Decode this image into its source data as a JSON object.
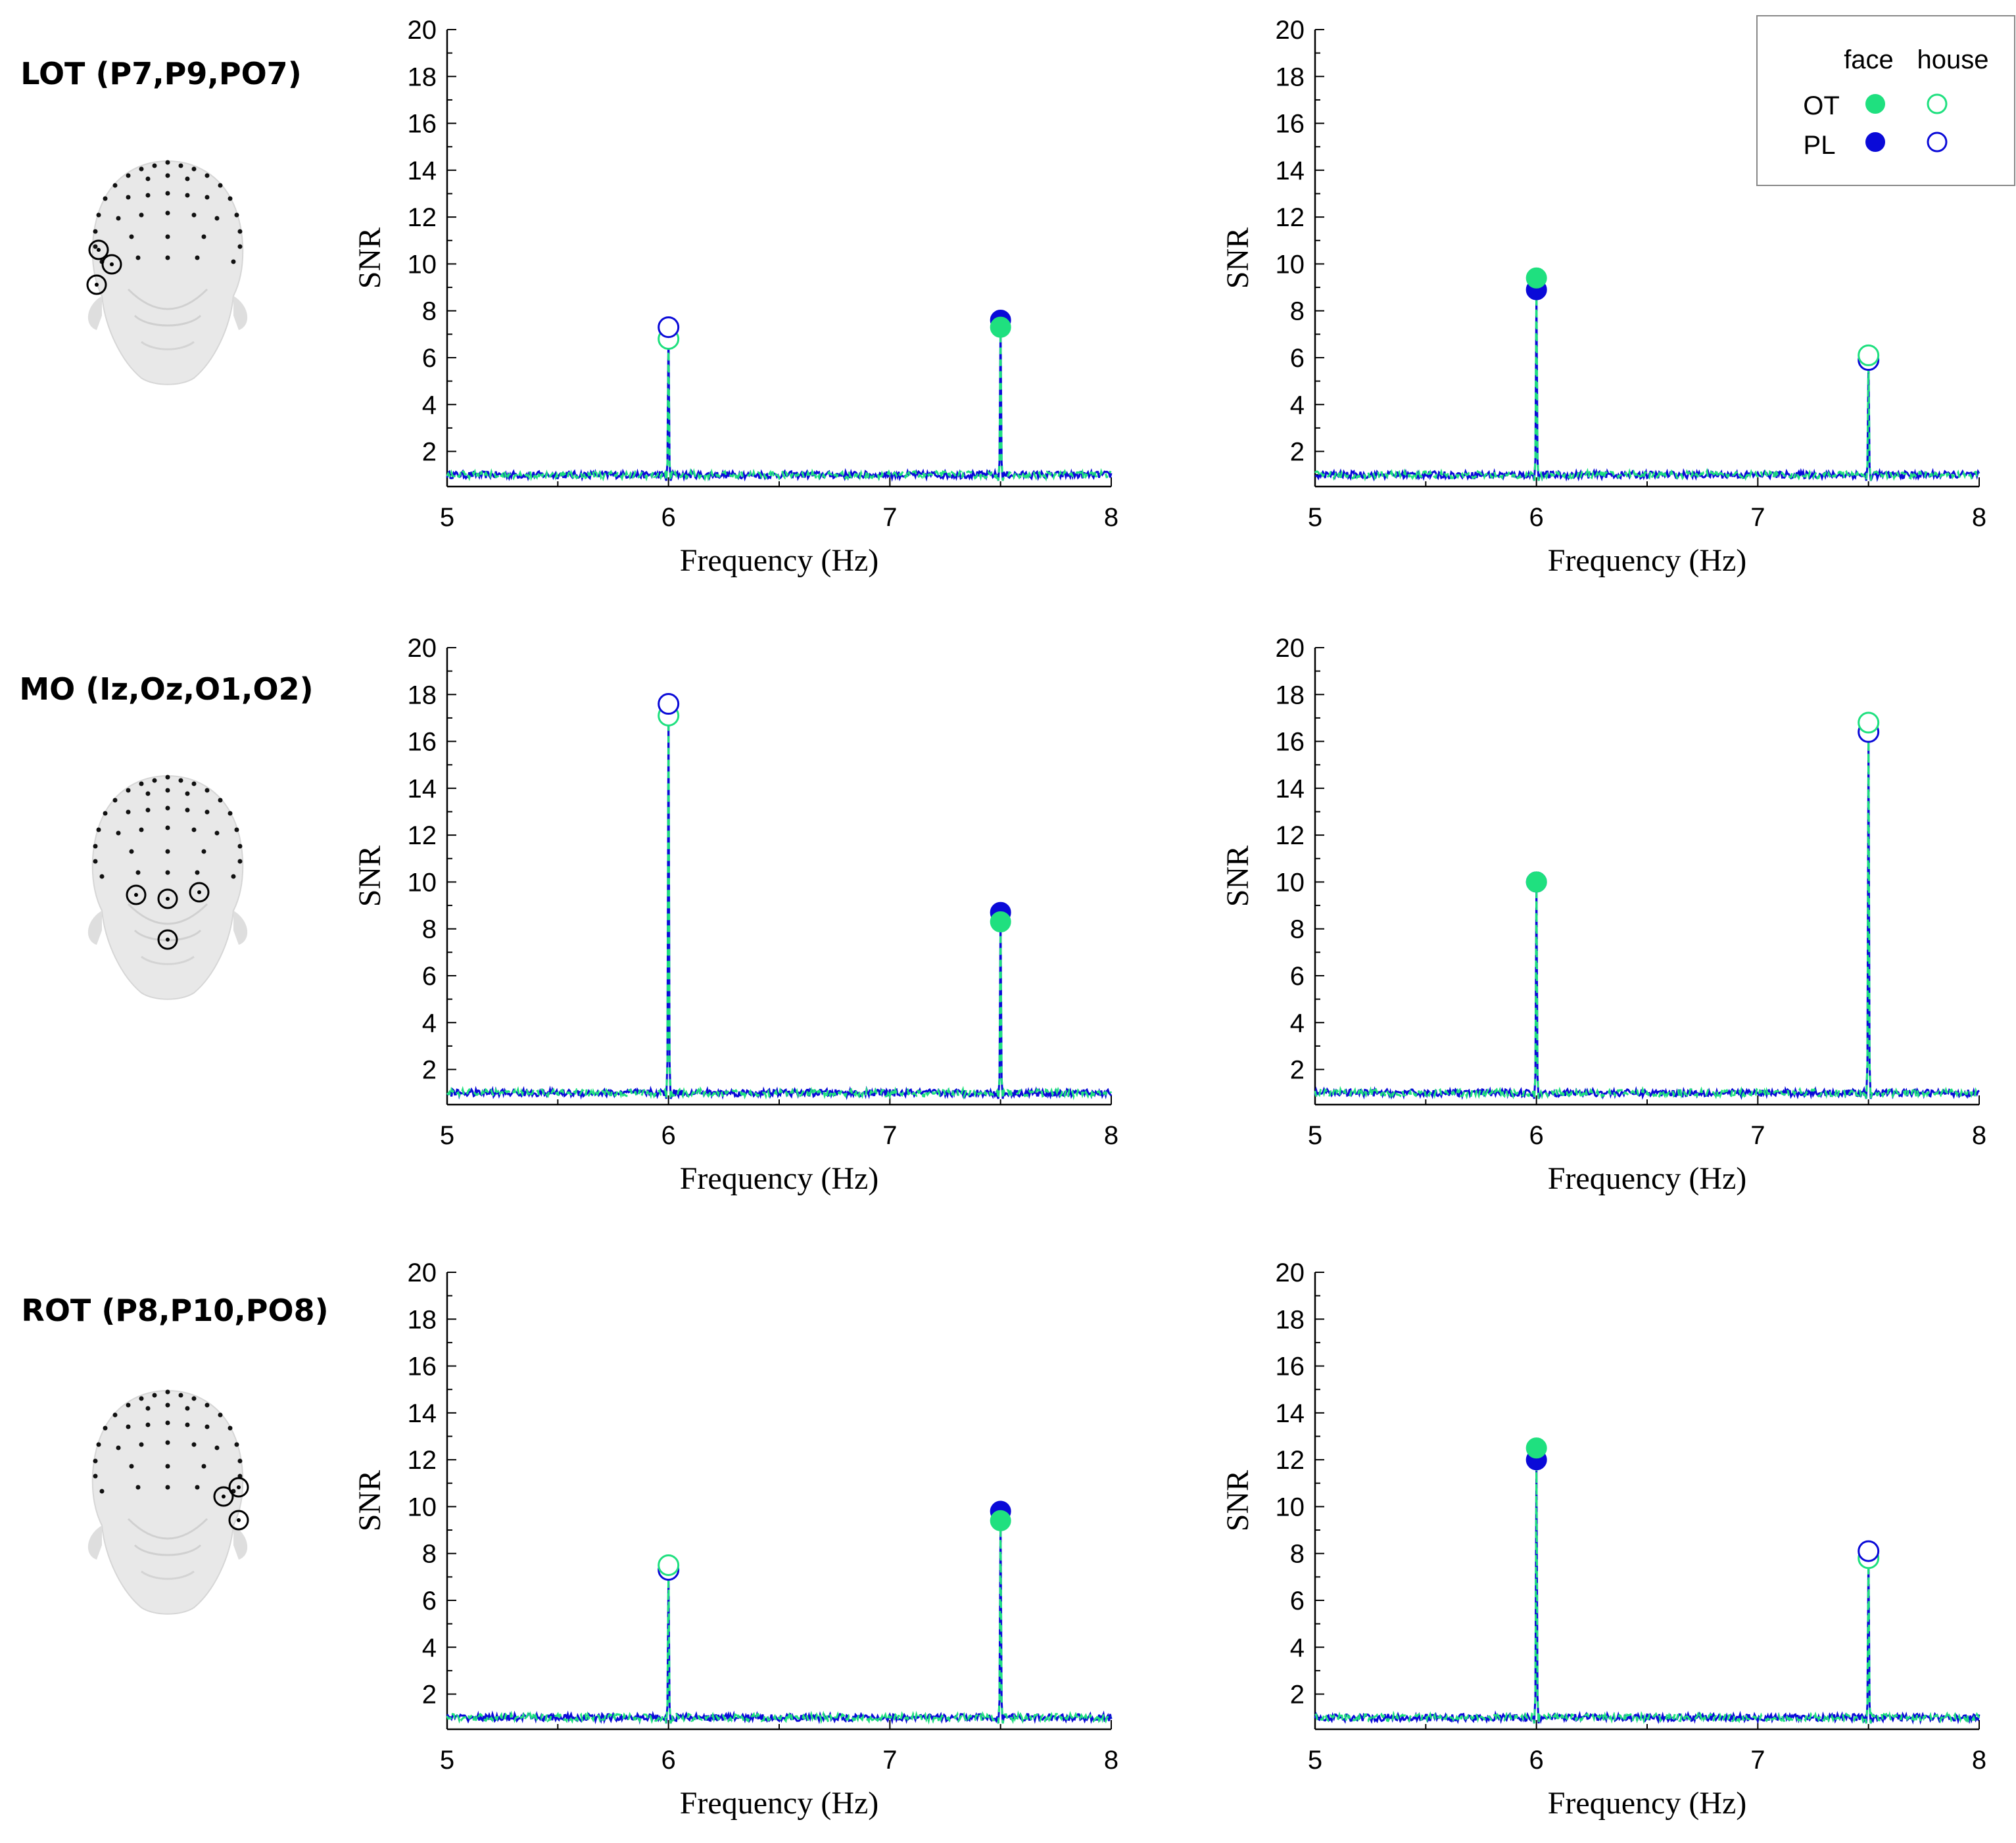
{
  "colors": {
    "ot": "#1fe07f",
    "pl": "#0a0ad8",
    "axis": "#000000",
    "legend_border": "#888888"
  },
  "legend": {
    "col_face": "face",
    "col_house": "house",
    "row_ot": "OT",
    "row_pl": "PL"
  },
  "rows": [
    {
      "title": "LOT (P7,P9,PO7)",
      "electrodes": "left-occipitotemporal"
    },
    {
      "title": "MO (Iz,Oz,O1,O2)",
      "electrodes": "medial-occipital"
    },
    {
      "title": "ROT (P8,P10,PO8)",
      "electrodes": "right-occipitotemporal"
    }
  ],
  "chart_data": [
    {
      "type": "line",
      "panel": "LOT-left",
      "xlabel": "Frequency (Hz)",
      "ylabel": "SNR",
      "xlim": [
        5,
        8
      ],
      "ylim": [
        0.5,
        20
      ],
      "xticks": [
        "5",
        "6",
        "7",
        "8"
      ],
      "yticks": [
        "2",
        "4",
        "6",
        "8",
        "10",
        "12",
        "14",
        "16",
        "18",
        "20"
      ],
      "baseline": 1.0,
      "peaks": [
        {
          "freq": 6.0,
          "ot": 6.8,
          "pl": 7.3,
          "marker": "open",
          "category": "house"
        },
        {
          "freq": 7.5,
          "ot": 7.3,
          "pl": 7.6,
          "marker": "filled",
          "category": "face"
        }
      ]
    },
    {
      "type": "line",
      "panel": "LOT-right",
      "xlabel": "Frequency (Hz)",
      "ylabel": "SNR",
      "xlim": [
        5,
        8
      ],
      "ylim": [
        0.5,
        20
      ],
      "xticks": [
        "5",
        "6",
        "7",
        "8"
      ],
      "yticks": [
        "2",
        "4",
        "6",
        "8",
        "10",
        "12",
        "14",
        "16",
        "18",
        "20"
      ],
      "baseline": 1.0,
      "peaks": [
        {
          "freq": 6.0,
          "ot": 9.4,
          "pl": 8.9,
          "marker": "filled",
          "category": "face"
        },
        {
          "freq": 7.5,
          "ot": 6.1,
          "pl": 5.9,
          "marker": "open",
          "category": "house"
        }
      ]
    },
    {
      "type": "line",
      "panel": "MO-left",
      "xlabel": "Frequency (Hz)",
      "ylabel": "SNR",
      "xlim": [
        5,
        8
      ],
      "ylim": [
        0.5,
        20
      ],
      "xticks": [
        "5",
        "6",
        "7",
        "8"
      ],
      "yticks": [
        "2",
        "4",
        "6",
        "8",
        "10",
        "12",
        "14",
        "16",
        "18",
        "20"
      ],
      "baseline": 1.0,
      "peaks": [
        {
          "freq": 6.0,
          "ot": 17.1,
          "pl": 17.6,
          "marker": "open",
          "category": "house"
        },
        {
          "freq": 7.5,
          "ot": 8.3,
          "pl": 8.7,
          "marker": "filled",
          "category": "face"
        }
      ]
    },
    {
      "type": "line",
      "panel": "MO-right",
      "xlabel": "Frequency (Hz)",
      "ylabel": "SNR",
      "xlim": [
        5,
        8
      ],
      "ylim": [
        0.5,
        20
      ],
      "xticks": [
        "5",
        "6",
        "7",
        "8"
      ],
      "yticks": [
        "2",
        "4",
        "6",
        "8",
        "10",
        "12",
        "14",
        "16",
        "18",
        "20"
      ],
      "baseline": 1.0,
      "peaks": [
        {
          "freq": 6.0,
          "ot": 10.0,
          "pl": 10.0,
          "marker": "filled",
          "category": "face"
        },
        {
          "freq": 7.5,
          "ot": 16.8,
          "pl": 16.4,
          "marker": "open",
          "category": "house"
        }
      ]
    },
    {
      "type": "line",
      "panel": "ROT-left",
      "xlabel": "Frequency (Hz)",
      "ylabel": "SNR",
      "xlim": [
        5,
        8
      ],
      "ylim": [
        0.5,
        20
      ],
      "xticks": [
        "5",
        "6",
        "7",
        "8"
      ],
      "yticks": [
        "2",
        "4",
        "6",
        "8",
        "10",
        "12",
        "14",
        "16",
        "18",
        "20"
      ],
      "baseline": 1.0,
      "peaks": [
        {
          "freq": 6.0,
          "ot": 7.5,
          "pl": 7.3,
          "marker": "open",
          "category": "house"
        },
        {
          "freq": 7.5,
          "ot": 9.4,
          "pl": 9.8,
          "marker": "filled",
          "category": "face"
        }
      ]
    },
    {
      "type": "line",
      "panel": "ROT-right",
      "xlabel": "Frequency (Hz)",
      "ylabel": "SNR",
      "xlim": [
        5,
        8
      ],
      "ylim": [
        0.5,
        20
      ],
      "xticks": [
        "5",
        "6",
        "7",
        "8"
      ],
      "yticks": [
        "2",
        "4",
        "6",
        "8",
        "10",
        "12",
        "14",
        "16",
        "18",
        "20"
      ],
      "baseline": 1.0,
      "peaks": [
        {
          "freq": 6.0,
          "ot": 12.5,
          "pl": 12.0,
          "marker": "filled",
          "category": "face"
        },
        {
          "freq": 7.5,
          "ot": 7.8,
          "pl": 8.1,
          "marker": "open",
          "category": "house"
        }
      ]
    }
  ]
}
